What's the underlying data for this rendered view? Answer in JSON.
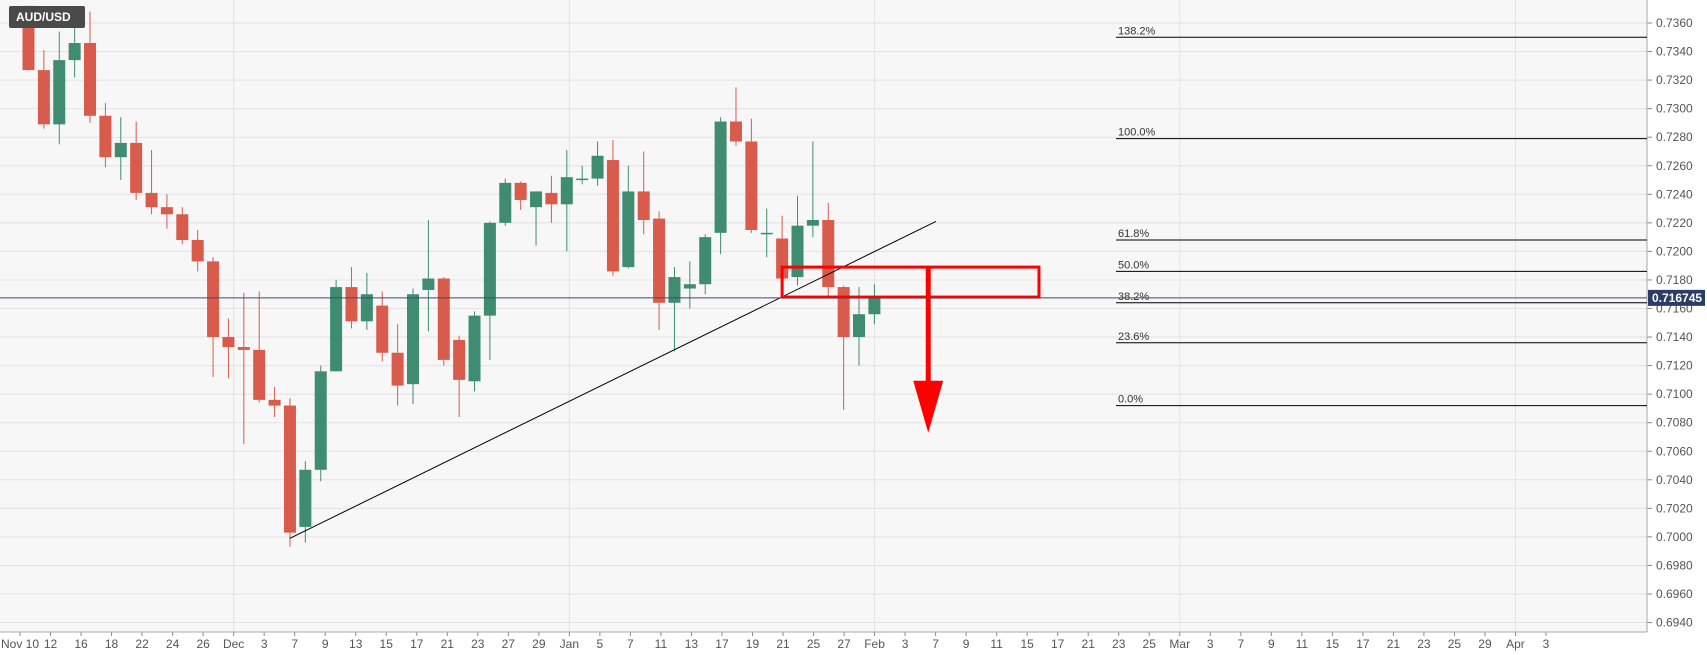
{
  "symbol": "AUD/USD",
  "current_price": "0.716745",
  "chart_data": {
    "type": "candlestick",
    "title": "",
    "xlabel": "",
    "ylabel": "",
    "ylim": [
      0.6935,
      0.7372
    ],
    "grid": true,
    "y_ticks": [
      "0.6940",
      "0.6960",
      "0.6980",
      "0.7000",
      "0.7020",
      "0.7040",
      "0.7060",
      "0.7080",
      "0.7100",
      "0.7120",
      "0.7140",
      "0.7160",
      "0.7180",
      "0.7200",
      "0.7220",
      "0.7240",
      "0.7260",
      "0.7280",
      "0.7300",
      "0.7320",
      "0.7340",
      "0.7360"
    ],
    "x_ticks": [
      "Nov 10",
      "12",
      "16",
      "18",
      "22",
      "24",
      "26",
      "Dec",
      "3",
      "7",
      "9",
      "13",
      "15",
      "17",
      "21",
      "23",
      "27",
      "29",
      "Jan",
      "5",
      "7",
      "11",
      "13",
      "17",
      "19",
      "21",
      "25",
      "27",
      "Feb",
      "3",
      "7",
      "9",
      "11",
      "15",
      "17",
      "21",
      "23",
      "25",
      "Mar",
      "3",
      "7",
      "9",
      "11",
      "15",
      "17",
      "21",
      "23",
      "25",
      "29",
      "Apr",
      "3"
    ],
    "candles": [
      {
        "o": 0.7372,
        "h": 0.7372,
        "l": 0.7327,
        "c": 0.7327
      },
      {
        "o": 0.7327,
        "h": 0.7341,
        "l": 0.7286,
        "c": 0.7289
      },
      {
        "o": 0.7289,
        "h": 0.7354,
        "l": 0.7275,
        "c": 0.7334
      },
      {
        "o": 0.7334,
        "h": 0.7357,
        "l": 0.7322,
        "c": 0.7346
      },
      {
        "o": 0.7346,
        "h": 0.7368,
        "l": 0.729,
        "c": 0.7295
      },
      {
        "o": 0.7295,
        "h": 0.7304,
        "l": 0.7259,
        "c": 0.7266
      },
      {
        "o": 0.7266,
        "h": 0.7294,
        "l": 0.725,
        "c": 0.7276
      },
      {
        "o": 0.7276,
        "h": 0.7291,
        "l": 0.7236,
        "c": 0.7241
      },
      {
        "o": 0.7241,
        "h": 0.7271,
        "l": 0.7226,
        "c": 0.7231
      },
      {
        "o": 0.7231,
        "h": 0.724,
        "l": 0.7216,
        "c": 0.7226
      },
      {
        "o": 0.7226,
        "h": 0.7231,
        "l": 0.7205,
        "c": 0.7208
      },
      {
        "o": 0.7208,
        "h": 0.7215,
        "l": 0.7186,
        "c": 0.7193
      },
      {
        "o": 0.7193,
        "h": 0.7196,
        "l": 0.7112,
        "c": 0.714
      },
      {
        "o": 0.714,
        "h": 0.7153,
        "l": 0.7111,
        "c": 0.7133
      },
      {
        "o": 0.7133,
        "h": 0.7171,
        "l": 0.7065,
        "c": 0.7131
      },
      {
        "o": 0.7131,
        "h": 0.7172,
        "l": 0.7094,
        "c": 0.7096
      },
      {
        "o": 0.7096,
        "h": 0.7105,
        "l": 0.7084,
        "c": 0.7092
      },
      {
        "o": 0.7092,
        "h": 0.7097,
        "l": 0.6993,
        "c": 0.7003
      },
      {
        "o": 0.7007,
        "h": 0.7053,
        "l": 0.6996,
        "c": 0.7047
      },
      {
        "o": 0.7047,
        "h": 0.712,
        "l": 0.7039,
        "c": 0.7116
      },
      {
        "o": 0.7116,
        "h": 0.718,
        "l": 0.7116,
        "c": 0.7175
      },
      {
        "o": 0.7175,
        "h": 0.7189,
        "l": 0.7146,
        "c": 0.7151
      },
      {
        "o": 0.7151,
        "h": 0.7185,
        "l": 0.7145,
        "c": 0.717
      },
      {
        "o": 0.7162,
        "h": 0.7172,
        "l": 0.7123,
        "c": 0.7129
      },
      {
        "o": 0.7129,
        "h": 0.7149,
        "l": 0.7092,
        "c": 0.7106
      },
      {
        "o": 0.7107,
        "h": 0.7174,
        "l": 0.7093,
        "c": 0.717
      },
      {
        "o": 0.7173,
        "h": 0.7222,
        "l": 0.7144,
        "c": 0.7181
      },
      {
        "o": 0.7181,
        "h": 0.7182,
        "l": 0.712,
        "c": 0.7124
      },
      {
        "o": 0.7138,
        "h": 0.7141,
        "l": 0.7084,
        "c": 0.711
      },
      {
        "o": 0.7109,
        "h": 0.7158,
        "l": 0.7102,
        "c": 0.7155
      },
      {
        "o": 0.7155,
        "h": 0.7221,
        "l": 0.7124,
        "c": 0.722
      },
      {
        "o": 0.722,
        "h": 0.7251,
        "l": 0.7218,
        "c": 0.7248
      },
      {
        "o": 0.7248,
        "h": 0.7249,
        "l": 0.7229,
        "c": 0.7236
      },
      {
        "o": 0.7231,
        "h": 0.7242,
        "l": 0.7204,
        "c": 0.7242
      },
      {
        "o": 0.7241,
        "h": 0.7253,
        "l": 0.722,
        "c": 0.7233
      },
      {
        "o": 0.7233,
        "h": 0.7271,
        "l": 0.72,
        "c": 0.7252
      },
      {
        "o": 0.7251,
        "h": 0.726,
        "l": 0.7247,
        "c": 0.7251
      },
      {
        "o": 0.7251,
        "h": 0.7277,
        "l": 0.7246,
        "c": 0.7267
      },
      {
        "o": 0.7264,
        "h": 0.7278,
        "l": 0.7183,
        "c": 0.7186
      },
      {
        "o": 0.7189,
        "h": 0.726,
        "l": 0.7188,
        "c": 0.7242
      },
      {
        "o": 0.7242,
        "h": 0.727,
        "l": 0.7212,
        "c": 0.7222
      },
      {
        "o": 0.7223,
        "h": 0.7228,
        "l": 0.7145,
        "c": 0.7164
      },
      {
        "o": 0.7164,
        "h": 0.7189,
        "l": 0.713,
        "c": 0.7182
      },
      {
        "o": 0.7174,
        "h": 0.7193,
        "l": 0.716,
        "c": 0.7177
      },
      {
        "o": 0.7177,
        "h": 0.7212,
        "l": 0.717,
        "c": 0.721
      },
      {
        "o": 0.7213,
        "h": 0.7294,
        "l": 0.7198,
        "c": 0.7291
      },
      {
        "o": 0.7291,
        "h": 0.7315,
        "l": 0.7274,
        "c": 0.7277
      },
      {
        "o": 0.7277,
        "h": 0.7293,
        "l": 0.7213,
        "c": 0.7215
      },
      {
        "o": 0.7213,
        "h": 0.723,
        "l": 0.7196,
        "c": 0.7213
      },
      {
        "o": 0.7209,
        "h": 0.7225,
        "l": 0.7185,
        "c": 0.7181
      },
      {
        "o": 0.7182,
        "h": 0.7239,
        "l": 0.7176,
        "c": 0.7218
      },
      {
        "o": 0.7218,
        "h": 0.7277,
        "l": 0.721,
        "c": 0.7222
      },
      {
        "o": 0.7222,
        "h": 0.7234,
        "l": 0.7168,
        "c": 0.7175
      },
      {
        "o": 0.7175,
        "h": 0.7176,
        "l": 0.7089,
        "c": 0.714
      },
      {
        "o": 0.714,
        "h": 0.7175,
        "l": 0.712,
        "c": 0.7156
      },
      {
        "o": 0.7156,
        "h": 0.7177,
        "l": 0.7149,
        "c": 0.7167
      }
    ],
    "fibonacci": [
      {
        "label": "138.2%",
        "value": 0.735
      },
      {
        "label": "100.0%",
        "value": 0.7279
      },
      {
        "label": "61.8%",
        "value": 0.7208
      },
      {
        "label": "50.0%",
        "value": 0.7186
      },
      {
        "label": "38.2%",
        "value": 0.7164
      },
      {
        "label": "23.6%",
        "value": 0.7136
      },
      {
        "label": "0.0%",
        "value": 0.7092
      }
    ],
    "trendline": {
      "from": {
        "bar": 17,
        "value": 0.6999
      },
      "to": {
        "bar": 59,
        "value": 0.7221
      }
    },
    "zone": {
      "from_bar": 49,
      "to_bar": 65.7,
      "top": 0.7189,
      "bottom": 0.7168
    },
    "arrow": {
      "bar": 58.5,
      "from": 0.7189,
      "to": 0.7073
    },
    "colors": {
      "bull": "#3f8c71",
      "bear": "#d85b4b",
      "wick": "#666666",
      "grid": "#e3e3e3",
      "price_line": "#3c4b6e",
      "price_badge": "#2b3d66",
      "annotation": "#ff0000",
      "trendline": "#000000",
      "symbol_badge": "#4a4a4a"
    }
  }
}
